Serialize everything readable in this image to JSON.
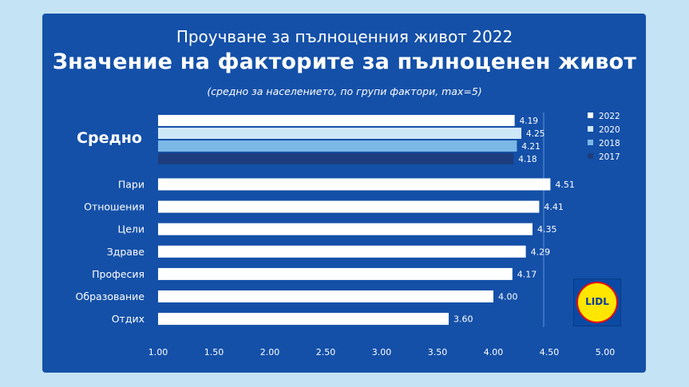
{
  "header": {
    "subtitle_top": "Проучване за пълноценния живот 2022",
    "title": "Значение на факторите за пълноценен живот",
    "note": "(средно за населението, по групи фактори, max=5)"
  },
  "logo": {
    "text": "LIDL"
  },
  "colors": {
    "background": "#c4e3f4",
    "panel": "#1450a8",
    "s2022": "#ffffff",
    "s2020": "#cfe8f8",
    "s2018": "#7cb8e6",
    "s2017": "#1d3d7e"
  },
  "chart_data": {
    "type": "bar",
    "orientation": "horizontal",
    "xlim": [
      1.0,
      5.0
    ],
    "x_ticks": [
      "1.00",
      "1.50",
      "2.00",
      "2.50",
      "3.00",
      "3.50",
      "4.00",
      "4.50",
      "5.00"
    ],
    "legend": [
      "2022",
      "2020",
      "2018",
      "2017"
    ],
    "legend_position": "right",
    "average": {
      "label": "Средно",
      "values": [
        {
          "year": "2022",
          "value": 4.19,
          "label": "4.19"
        },
        {
          "year": "2020",
          "value": 4.25,
          "label": "4.25"
        },
        {
          "year": "2018",
          "value": 4.21,
          "label": "4.21"
        },
        {
          "year": "2017",
          "value": 4.18,
          "label": "4.18"
        }
      ]
    },
    "factors_year": "2022",
    "categories": [
      "Пари",
      "Отношения",
      "Цели",
      "Здраве",
      "Професия",
      "Образование",
      "Отдих"
    ],
    "values": [
      4.51,
      4.41,
      4.35,
      4.29,
      4.17,
      4.0,
      3.6
    ],
    "value_labels": [
      "4.51",
      "4.41",
      "4.35",
      "4.29",
      "4.17",
      "4.00",
      "3.60"
    ]
  }
}
